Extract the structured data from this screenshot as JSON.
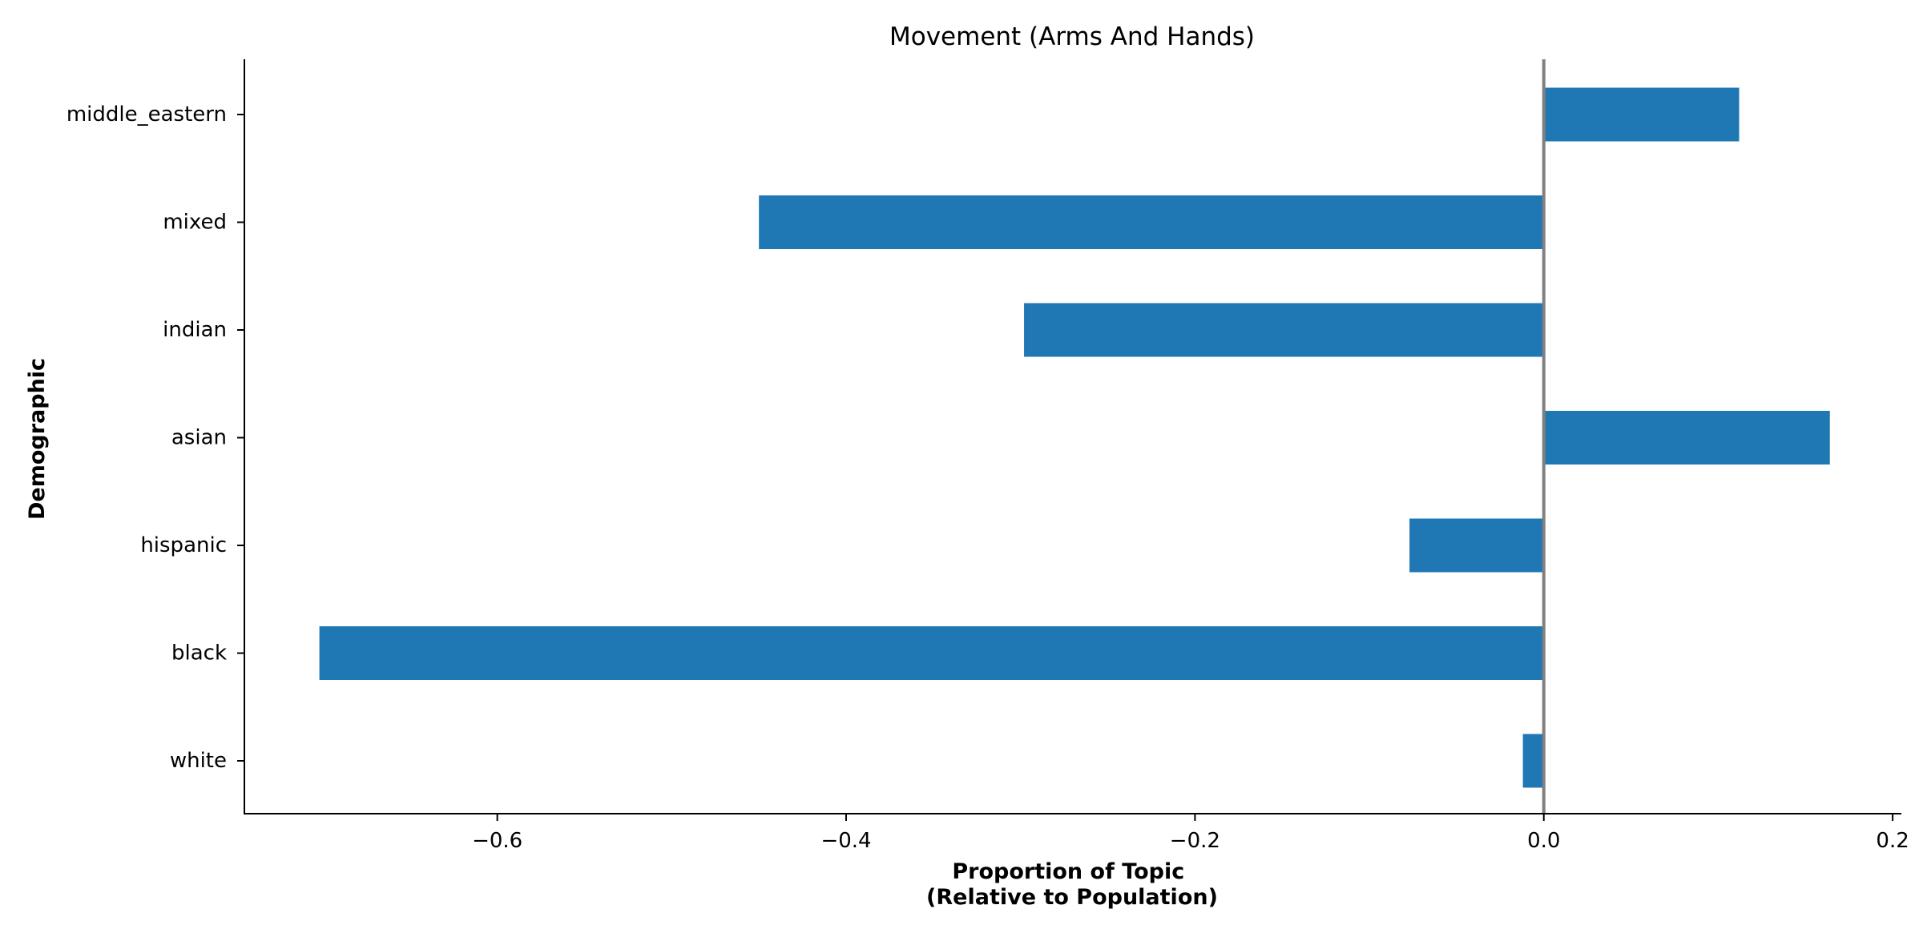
{
  "chart_data": {
    "type": "bar",
    "orientation": "horizontal",
    "title": "Movement (Arms And Hands)",
    "xlabel_lines": [
      "Proportion of Topic",
      "(Relative to Population)"
    ],
    "ylabel": "Demographic",
    "categories": [
      "middle_eastern",
      "mixed",
      "indian",
      "asian",
      "hispanic",
      "black",
      "white"
    ],
    "values": [
      0.112,
      -0.45,
      -0.298,
      0.164,
      -0.077,
      -0.702,
      -0.012
    ],
    "xlim": [
      -0.745,
      0.205
    ],
    "xticks": [
      -0.6,
      -0.4,
      -0.2,
      0.0,
      0.2
    ],
    "xtick_labels": [
      "−0.6",
      "−0.4",
      "−0.2",
      "0.0",
      "0.2"
    ],
    "reference_line_x": 0.0,
    "grid": false,
    "bar_color": "#1f77b4",
    "reference_line_color": "#808080"
  }
}
